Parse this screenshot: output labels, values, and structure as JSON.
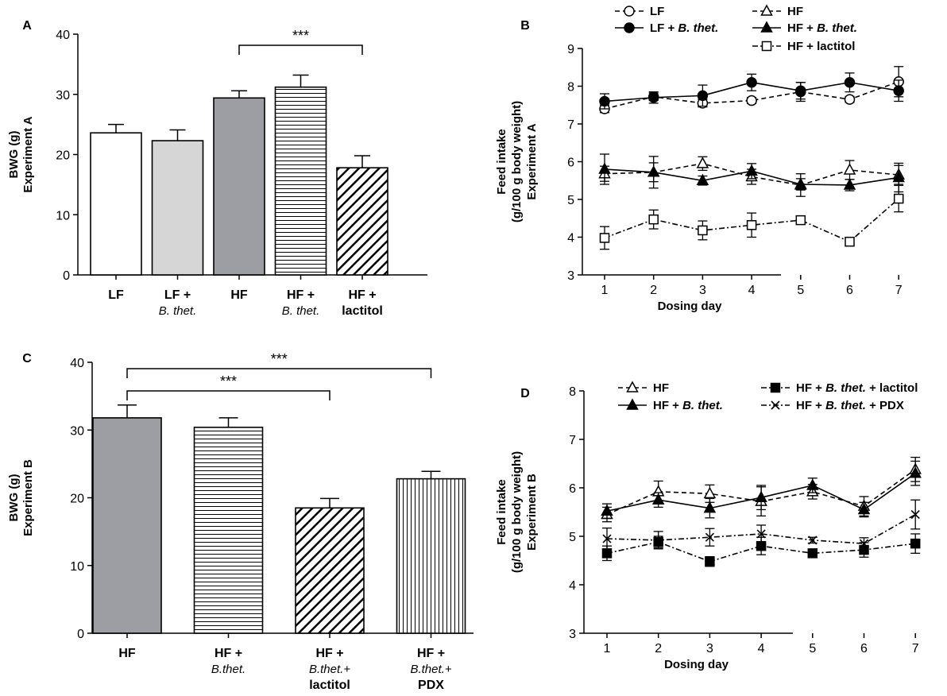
{
  "chart_data": [
    {
      "panel": "A",
      "type": "bar",
      "ylabel": "BWG (g)",
      "ylabel2": "Experiment A",
      "ylim": [
        0,
        40
      ],
      "yticks": [
        0,
        10,
        20,
        30,
        40
      ],
      "categories": [
        {
          "line1": "LF",
          "line2": ""
        },
        {
          "line1": "LF +",
          "line2": "B. thet."
        },
        {
          "line1": "HF",
          "line2": ""
        },
        {
          "line1": "HF +",
          "line2": "B. thet."
        },
        {
          "line1": "HF +",
          "line2": "lactitol"
        }
      ],
      "values": [
        23.6,
        22.3,
        29.4,
        31.2,
        17.8
      ],
      "errors": [
        1.4,
        1.8,
        1.2,
        2.0,
        2.0
      ],
      "fills": [
        "white",
        "lightgray",
        "gray",
        "hlines",
        "diag"
      ],
      "significance": [
        {
          "from": 2,
          "to": 4,
          "label": "***"
        }
      ]
    },
    {
      "panel": "B",
      "type": "line",
      "xlabel": "Dosing day",
      "ylabel": "Feed intake",
      "ylabel2": "(g/100 g body weight)",
      "ylabel3": "Experiment A",
      "ylim": [
        3,
        9
      ],
      "yticks": [
        3,
        4,
        5,
        6,
        7,
        8,
        9
      ],
      "x": [
        1,
        2,
        3,
        4,
        5,
        6,
        7
      ],
      "series": [
        {
          "name": "LF",
          "italic": "",
          "marker": "circle-open",
          "dash": "dashed",
          "values": [
            7.4,
            7.72,
            7.55,
            7.62,
            7.85,
            7.65,
            8.12
          ],
          "errors": [
            0.1,
            0.1,
            0.1,
            0.08,
            0.25,
            0.08,
            0.4
          ]
        },
        {
          "name": "LF + ",
          "italic": "B. thet.",
          "marker": "circle-filled",
          "dash": "solid",
          "values": [
            7.6,
            7.7,
            7.75,
            8.1,
            7.88,
            8.1,
            7.88
          ],
          "errors": [
            0.2,
            0.15,
            0.28,
            0.22,
            0.22,
            0.25,
            0.28
          ]
        },
        {
          "name": "HF",
          "italic": "",
          "marker": "triangle-open",
          "dash": "dashed",
          "values": [
            5.68,
            5.72,
            5.95,
            5.6,
            5.38,
            5.78,
            5.65
          ],
          "errors": [
            0.2,
            0.25,
            0.18,
            0.2,
            0.3,
            0.25,
            0.25
          ]
        },
        {
          "name": "HF + ",
          "italic": "B. thet.",
          "marker": "triangle-filled",
          "dash": "solid",
          "values": [
            5.8,
            5.72,
            5.5,
            5.75,
            5.4,
            5.38,
            5.58
          ],
          "errors": [
            0.4,
            0.42,
            0.12,
            0.2,
            0.15,
            0.15,
            0.38
          ]
        },
        {
          "name": "HF + lactitol",
          "italic": "",
          "marker": "square-open",
          "dash": "dashdot",
          "values": [
            3.98,
            4.47,
            4.18,
            4.32,
            4.45,
            3.88,
            5.02
          ],
          "errors": [
            0.3,
            0.25,
            0.25,
            0.32,
            0.1,
            0.08,
            0.35
          ]
        }
      ]
    },
    {
      "panel": "C",
      "type": "bar",
      "ylabel": "BWG (g)",
      "ylabel2": "Experiment B",
      "ylim": [
        0,
        40
      ],
      "yticks": [
        0,
        10,
        20,
        30,
        40
      ],
      "categories": [
        {
          "line1": "HF",
          "line2": "",
          "line3": ""
        },
        {
          "line1": "HF +",
          "line2": "B.thet.",
          "line3": ""
        },
        {
          "line1": "HF +",
          "line2": "B.thet.+",
          "line3": "lactitol"
        },
        {
          "line1": "HF +",
          "line2": "B.thet.+",
          "line3": "PDX"
        }
      ],
      "values": [
        31.8,
        30.4,
        18.5,
        22.8
      ],
      "errors": [
        1.9,
        1.4,
        1.4,
        1.1
      ],
      "fills": [
        "gray",
        "hlines",
        "diag",
        "vlines"
      ],
      "significance": [
        {
          "from": 0,
          "to": 2,
          "label": "***"
        },
        {
          "from": 0,
          "to": 3,
          "label": "***"
        }
      ]
    },
    {
      "panel": "D",
      "type": "line",
      "xlabel": "Dosing day",
      "ylabel": "Feed intake",
      "ylabel2": "(g/100 g body weight)",
      "ylabel3": "Experiment B",
      "ylim": [
        3,
        8
      ],
      "yticks": [
        3,
        4,
        5,
        6,
        7,
        8
      ],
      "x": [
        1,
        2,
        3,
        4,
        5,
        6,
        7
      ],
      "series": [
        {
          "name": "HF",
          "italic": "",
          "marker": "triangle-open",
          "dash": "dashed",
          "values": [
            5.45,
            5.92,
            5.88,
            5.72,
            5.92,
            5.62,
            6.38
          ],
          "errors": [
            0.15,
            0.22,
            0.18,
            0.3,
            0.15,
            0.2,
            0.25
          ]
        },
        {
          "name": "HF + ",
          "italic": "B. thet.",
          "marker": "triangle-filled",
          "dash": "solid",
          "values": [
            5.52,
            5.75,
            5.58,
            5.8,
            6.05,
            5.55,
            6.3
          ],
          "errors": [
            0.15,
            0.15,
            0.2,
            0.25,
            0.15,
            0.15,
            0.25
          ]
        },
        {
          "name": "HF + ",
          "italic": "B. thet.",
          "suffix": " + lactitol",
          "marker": "square-filled",
          "dash": "dashdot",
          "values": [
            4.65,
            4.88,
            4.48,
            4.8,
            4.65,
            4.72,
            4.85
          ],
          "errors": [
            0.15,
            0.12,
            0.1,
            0.18,
            0.08,
            0.15,
            0.2
          ]
        },
        {
          "name": "HF + ",
          "italic": "B. thet.",
          "suffix": " + PDX",
          "marker": "x",
          "dash": "dashdot",
          "values": [
            4.95,
            4.92,
            4.98,
            5.05,
            4.92,
            4.85,
            5.45
          ],
          "errors": [
            0.22,
            0.18,
            0.18,
            0.18,
            0.06,
            0.12,
            0.3
          ]
        }
      ]
    }
  ]
}
